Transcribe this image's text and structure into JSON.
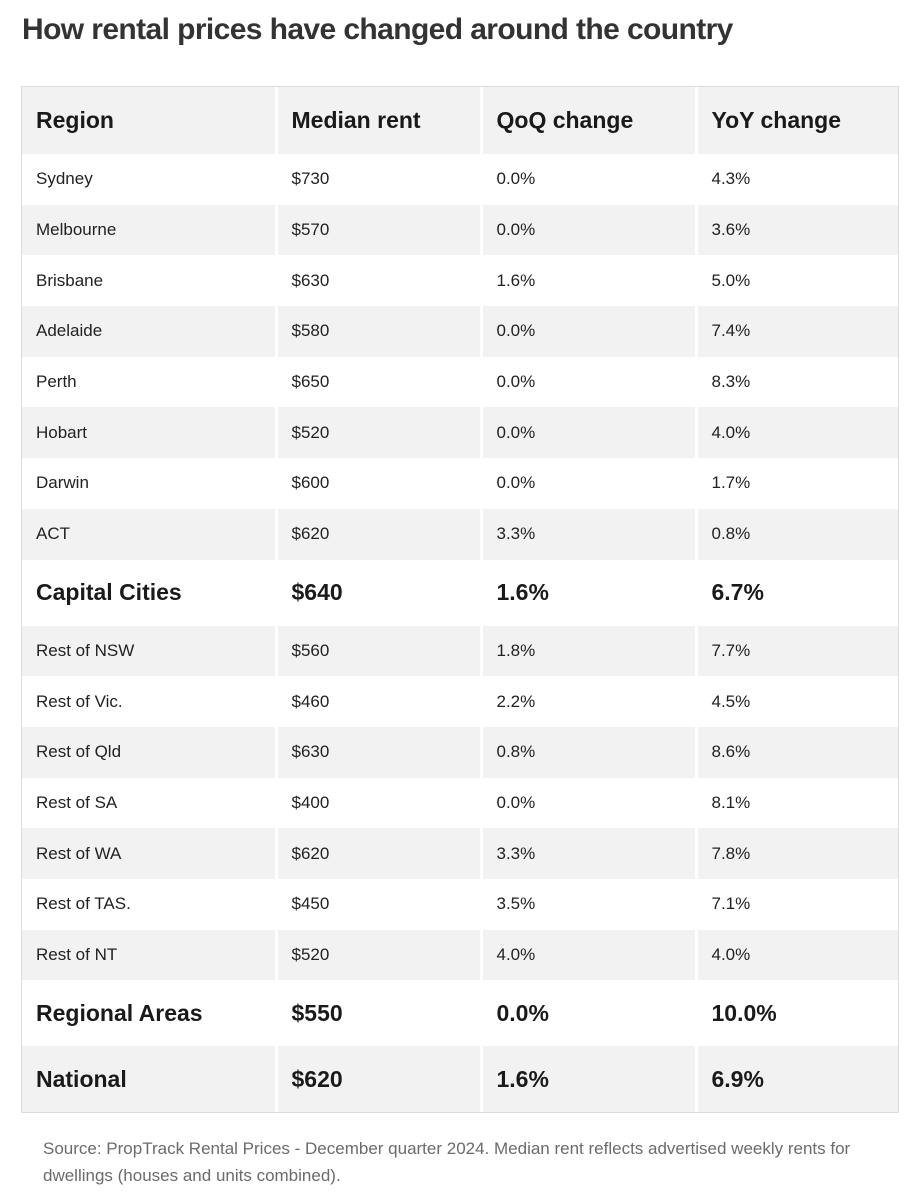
{
  "title": "How rental prices have changed around the country",
  "table": {
    "headers": [
      "Region",
      "Median rent",
      "QoQ change",
      "YoY change"
    ],
    "rows": [
      {
        "region": "Sydney",
        "median_rent": "$730",
        "qoq_change": "0.0%",
        "yoy_change": "4.3%",
        "summary": false
      },
      {
        "region": "Melbourne",
        "median_rent": "$570",
        "qoq_change": "0.0%",
        "yoy_change": "3.6%",
        "summary": false
      },
      {
        "region": "Brisbane",
        "median_rent": "$630",
        "qoq_change": "1.6%",
        "yoy_change": "5.0%",
        "summary": false
      },
      {
        "region": "Adelaide",
        "median_rent": "$580",
        "qoq_change": "0.0%",
        "yoy_change": "7.4%",
        "summary": false
      },
      {
        "region": "Perth",
        "median_rent": "$650",
        "qoq_change": "0.0%",
        "yoy_change": "8.3%",
        "summary": false
      },
      {
        "region": "Hobart",
        "median_rent": "$520",
        "qoq_change": "0.0%",
        "yoy_change": "4.0%",
        "summary": false
      },
      {
        "region": "Darwin",
        "median_rent": "$600",
        "qoq_change": "0.0%",
        "yoy_change": "1.7%",
        "summary": false
      },
      {
        "region": "ACT",
        "median_rent": "$620",
        "qoq_change": "3.3%",
        "yoy_change": "0.8%",
        "summary": false
      },
      {
        "region": "Capital Cities",
        "median_rent": "$640",
        "qoq_change": "1.6%",
        "yoy_change": "6.7%",
        "summary": true
      },
      {
        "region": "Rest of NSW",
        "median_rent": "$560",
        "qoq_change": "1.8%",
        "yoy_change": "7.7%",
        "summary": false
      },
      {
        "region": "Rest of Vic.",
        "median_rent": "$460",
        "qoq_change": "2.2%",
        "yoy_change": "4.5%",
        "summary": false
      },
      {
        "region": "Rest of Qld",
        "median_rent": "$630",
        "qoq_change": "0.8%",
        "yoy_change": "8.6%",
        "summary": false
      },
      {
        "region": "Rest of SA",
        "median_rent": "$400",
        "qoq_change": "0.0%",
        "yoy_change": "8.1%",
        "summary": false
      },
      {
        "region": "Rest of WA",
        "median_rent": "$620",
        "qoq_change": "3.3%",
        "yoy_change": "7.8%",
        "summary": false
      },
      {
        "region": "Rest of TAS.",
        "median_rent": "$450",
        "qoq_change": "3.5%",
        "yoy_change": "7.1%",
        "summary": false
      },
      {
        "region": "Rest of NT",
        "median_rent": "$520",
        "qoq_change": "4.0%",
        "yoy_change": "4.0%",
        "summary": false
      },
      {
        "region": "Regional Areas",
        "median_rent": "$550",
        "qoq_change": "0.0%",
        "yoy_change": "10.0%",
        "summary": true
      },
      {
        "region": "National",
        "median_rent": "$620",
        "qoq_change": "1.6%",
        "yoy_change": "6.9%",
        "summary": true
      }
    ]
  },
  "source_note": "Source: PropTrack Rental Prices - December quarter 2024. Median rent reflects advertised weekly rents for dwellings (houses and units combined).",
  "colors": {
    "title": "#333333",
    "header_background": "#f2f2f2",
    "stripe_background": "#f2f2f2",
    "text": "#1a1a1a",
    "note_text": "#6b6b6b"
  }
}
